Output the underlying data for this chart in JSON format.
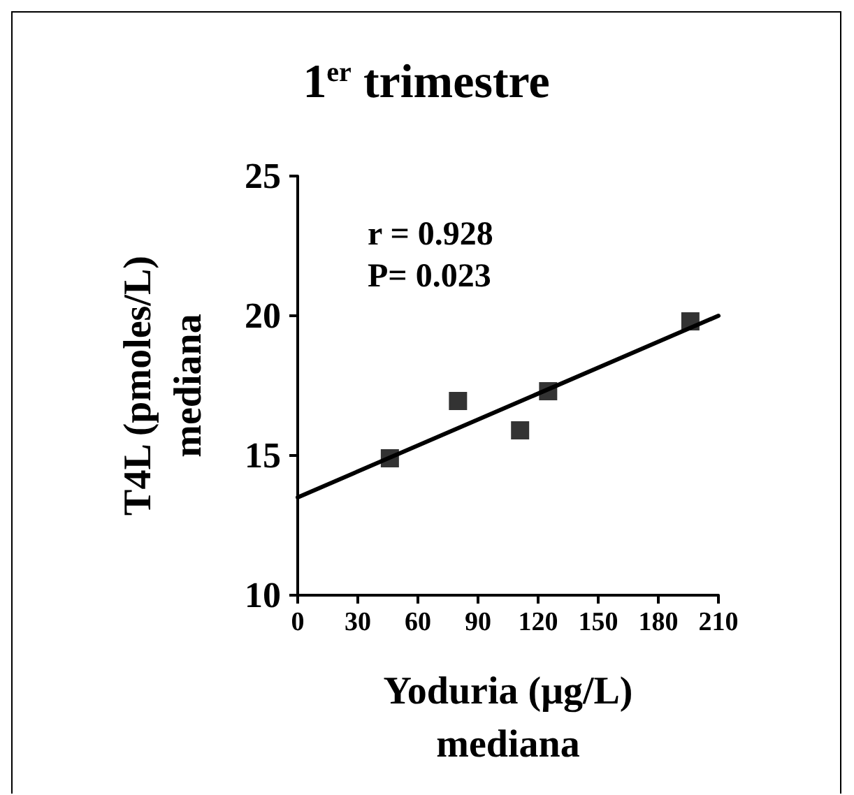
{
  "chart_data": {
    "type": "scatter",
    "title": "1$^{er}$ trimestre",
    "xlabel": "Yoduria (μg/L)\nmediana",
    "ylabel": "T4L (pmoles/L)\nmediana",
    "annotations": [
      "r = 0.928",
      "P= 0.023"
    ],
    "series": [
      {
        "color": "#000000",
        "marker": "square",
        "x": [
          46,
          80,
          111,
          125,
          196
        ],
        "values": [
          14.9,
          16.95,
          15.9,
          17.3,
          19.8
        ]
      },
      {
        "type": "line",
        "color": "#000000",
        "marker": "none",
        "line_style": "solid",
        "x": [
          0,
          210
        ],
        "values": [
          13.5,
          20
        ]
      }
    ],
    "xlim": [
      0,
      210
    ],
    "xticks": [
      0,
      30,
      60,
      90,
      120,
      150,
      180,
      210
    ],
    "ylim": [
      10,
      25
    ],
    "yticks": [
      10,
      15,
      20,
      25
    ],
    "grid": false
  }
}
